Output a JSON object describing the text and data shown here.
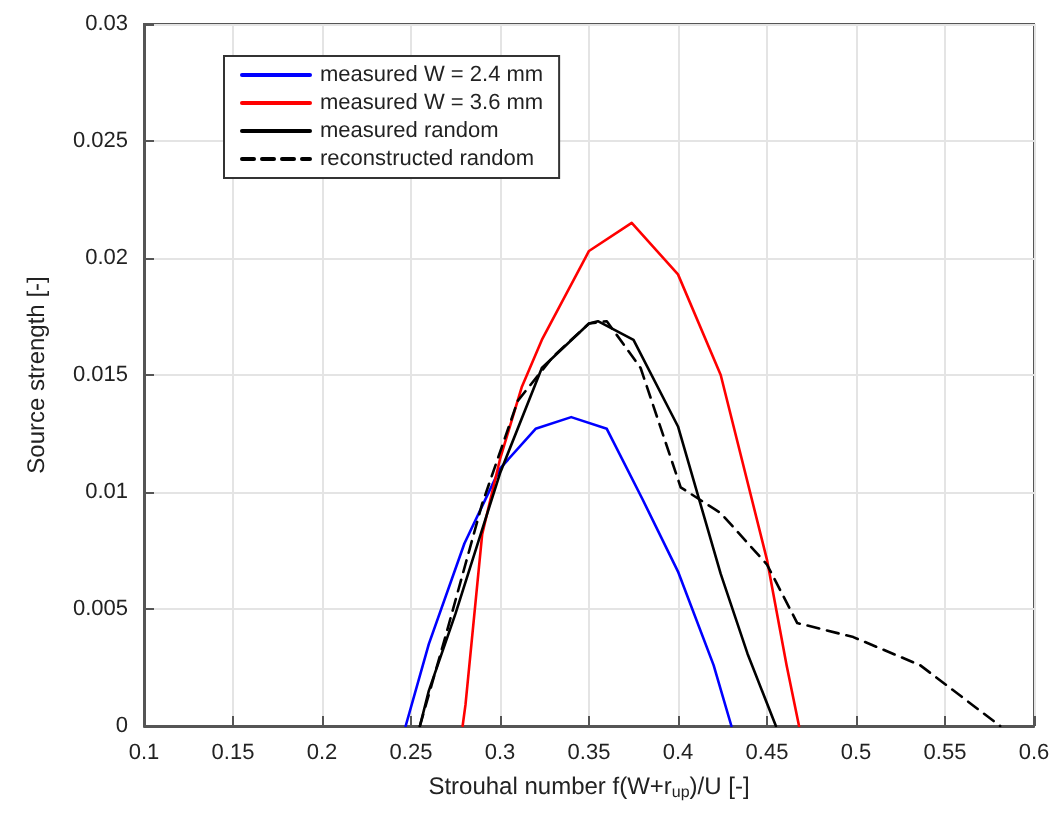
{
  "chart_data": {
    "type": "line",
    "xlabel": "Strouhal number f(W+r$_{up}$)/U [-]",
    "ylabel": "Source strength [-]",
    "xlim": [
      0.1,
      0.6
    ],
    "xticks": [
      0.1,
      0.15,
      0.2,
      0.25,
      0.3,
      0.35,
      0.4,
      0.45,
      0.5,
      0.55,
      0.6
    ],
    "ylim": [
      0,
      0.03
    ],
    "yticks": [
      0,
      0.005,
      0.01,
      0.015,
      0.02,
      0.025,
      0.03
    ],
    "grid": true,
    "legend": "top left",
    "marker": "none",
    "series": [
      {
        "name": "measured W = 2.4 mm",
        "color": "#0000ff",
        "line_style": "solid",
        "x": [
          0.247,
          0.26,
          0.28,
          0.3,
          0.32,
          0.34,
          0.36,
          0.38,
          0.4,
          0.42,
          0.43
        ],
        "values": [
          0,
          0.0035,
          0.0078,
          0.011,
          0.0127,
          0.0132,
          0.0127,
          0.0097,
          0.0066,
          0.0026,
          0
        ]
      },
      {
        "name": "measured W = 3.6 mm",
        "color": "#ff0000",
        "line_style": "solid",
        "x": [
          0.279,
          0.2806,
          0.29,
          0.3,
          0.3123,
          0.3235,
          0.35,
          0.374,
          0.4,
          0.424,
          0.45,
          0.461,
          0.468
        ],
        "values": [
          0,
          0.0009,
          0.0082,
          0.0114,
          0.0145,
          0.0165,
          0.0203,
          0.0215,
          0.0193,
          0.015,
          0.0071,
          0.0026,
          0
        ]
      },
      {
        "name": "measured random",
        "color": "#000000",
        "line_style": "solid",
        "x": [
          0.255,
          0.26,
          0.275,
          0.3,
          0.3235,
          0.35,
          0.355,
          0.375,
          0.4,
          0.424,
          0.439,
          0.455
        ],
        "values": [
          0,
          0.0015,
          0.0048,
          0.0108,
          0.0153,
          0.0172,
          0.0173,
          0.0165,
          0.0128,
          0.0065,
          0.0031,
          0
        ]
      },
      {
        "name": "reconstructed random",
        "color": "#000000",
        "line_style": "dashed",
        "x": [
          0.255,
          0.27,
          0.29,
          0.31,
          0.33,
          0.35,
          0.36,
          0.379,
          0.4015,
          0.424,
          0.45,
          0.467,
          0.4985,
          0.536,
          0.581
        ],
        "values": [
          0,
          0.004,
          0.0095,
          0.0139,
          0.0158,
          0.0172,
          0.0173,
          0.0153,
          0.0102,
          0.0091,
          0.0069,
          0.0044,
          0.0038,
          0.0026,
          0
        ]
      }
    ]
  }
}
